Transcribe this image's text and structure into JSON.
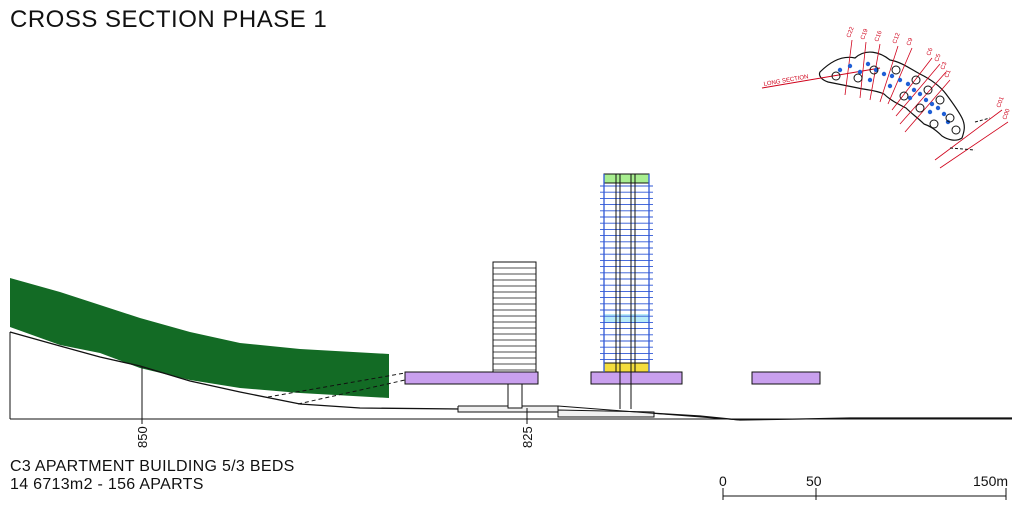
{
  "title": "CROSS SECTION PHASE 1",
  "caption": {
    "line1": "C3 APARTMENT BUILDING 5/3 BEDS",
    "line2": "14 6713m2 - 156 APARTS"
  },
  "elevation_markers": [
    "850",
    "825"
  ],
  "scale_bar": {
    "labels": [
      "0",
      "50",
      "150m"
    ]
  },
  "key_plan": {
    "long_section_label": "LONG SECTION",
    "section_labels": [
      "C22",
      "C19",
      "C16",
      "C12",
      "C9",
      "C6",
      "C5",
      "C3",
      "C1",
      "C01",
      "C00"
    ]
  },
  "colors": {
    "vegetation": "#136b25",
    "podium": "#c9a0ee",
    "tower_blue": "#2f57d6",
    "tower_top": "#a8ee90",
    "tower_mid": "#b8ecf8",
    "tower_base": "#f4dd3e",
    "key_red": "#d0021b",
    "key_blue": "#1f5fd6"
  }
}
